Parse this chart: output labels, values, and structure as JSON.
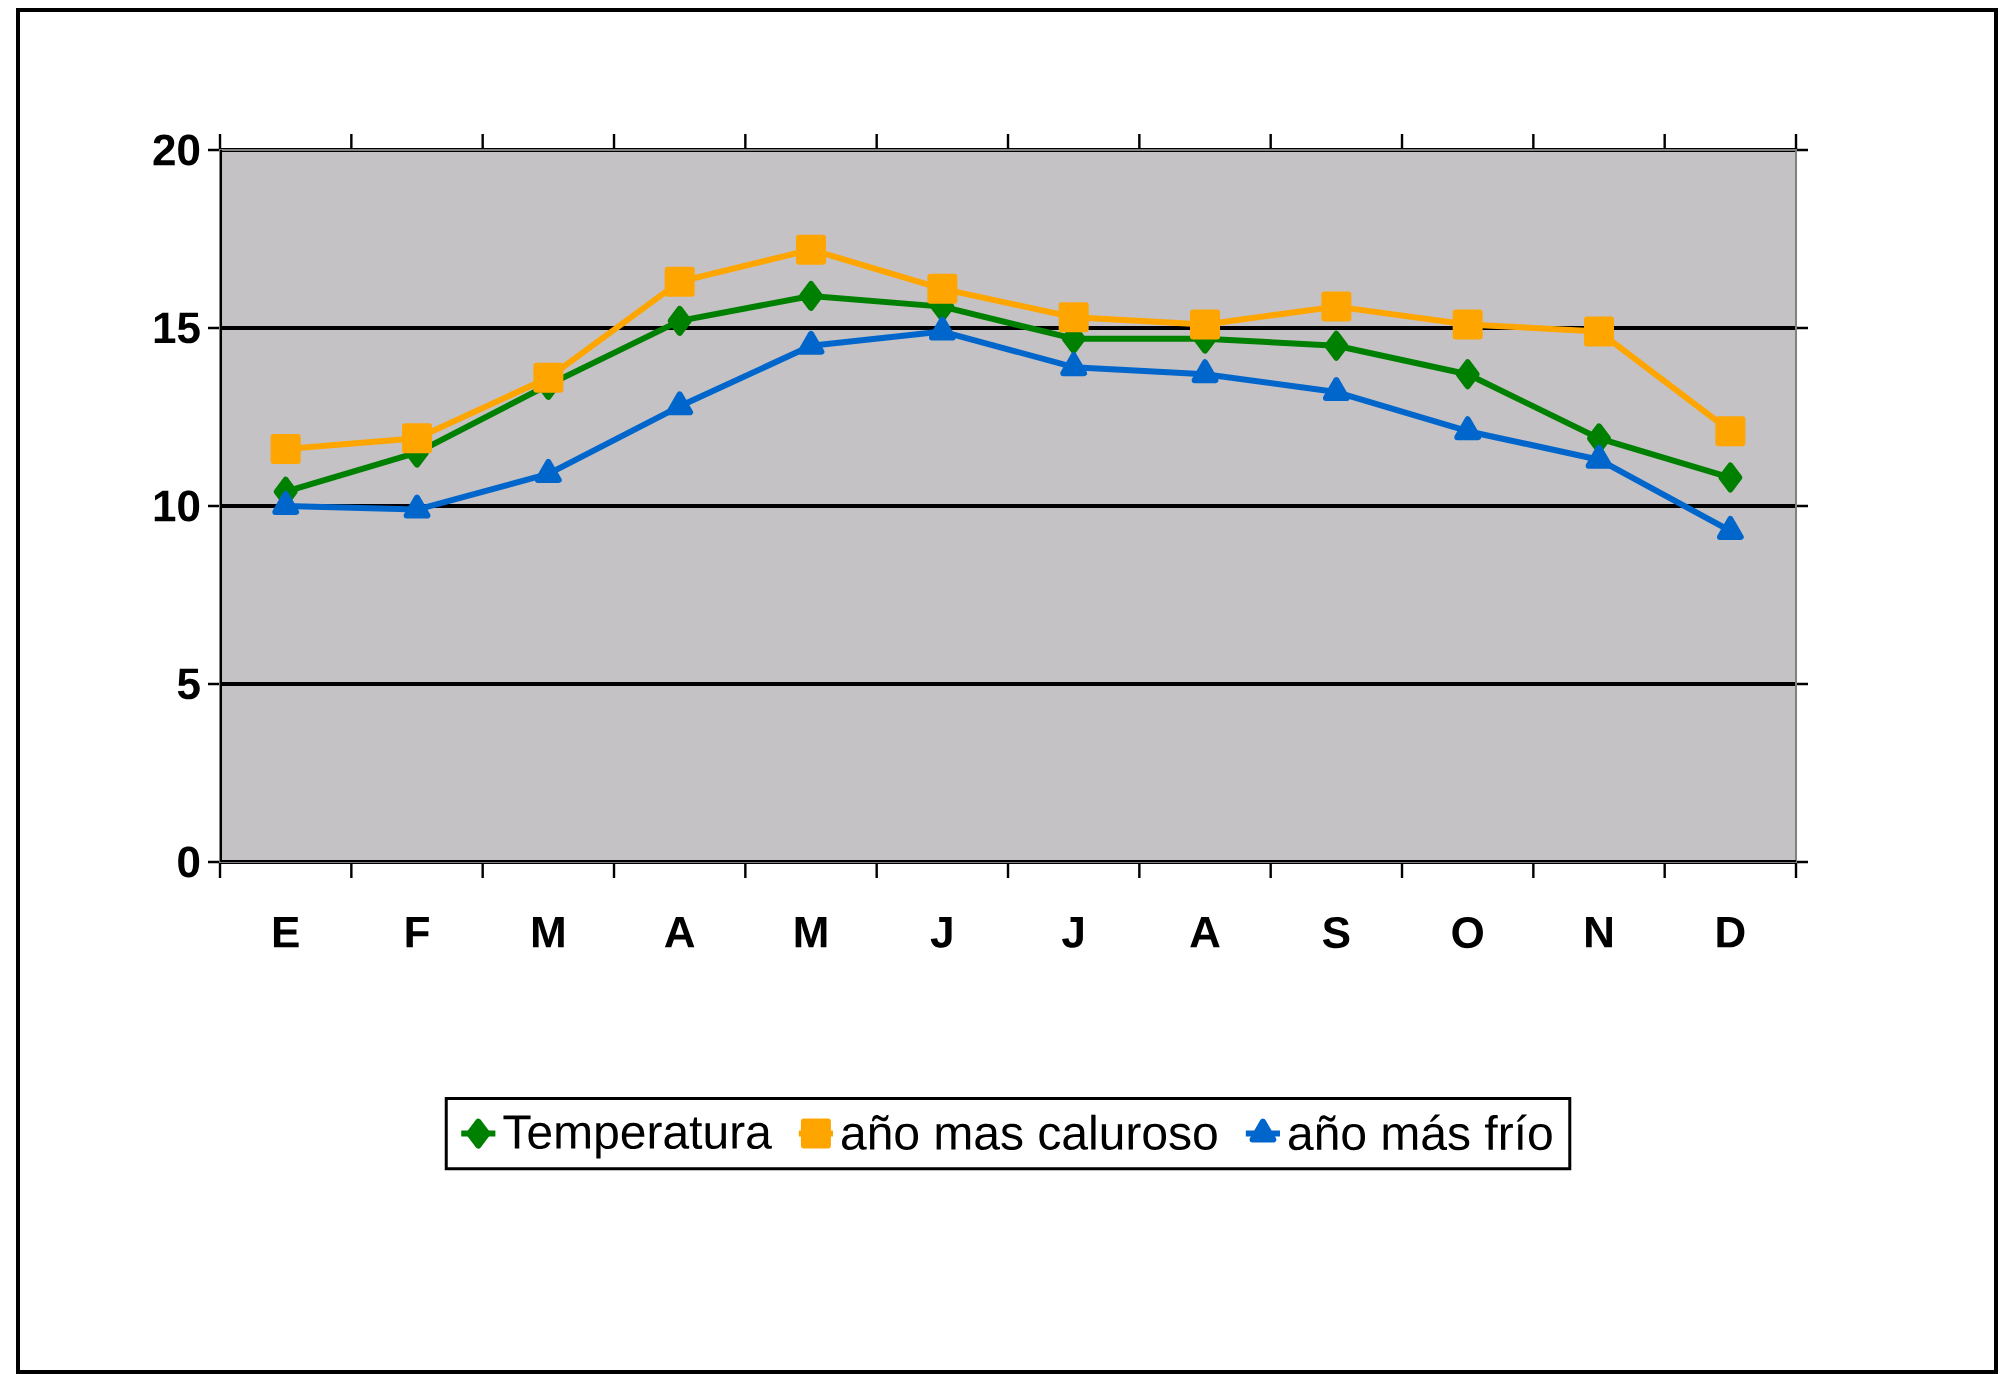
{
  "chart_data": {
    "type": "line",
    "categories": [
      "E",
      "F",
      "M",
      "A",
      "M",
      "J",
      "J",
      "A",
      "S",
      "O",
      "N",
      "D"
    ],
    "series": [
      {
        "name": "Temperatura",
        "color": "#008000",
        "marker": "diamond",
        "values": [
          10.4,
          11.5,
          13.4,
          15.2,
          15.9,
          15.6,
          14.7,
          14.7,
          14.5,
          13.7,
          11.9,
          10.8
        ]
      },
      {
        "name": "año mas caluroso",
        "color": "#ffa500",
        "marker": "square",
        "values": [
          11.6,
          11.9,
          13.6,
          16.3,
          17.2,
          16.1,
          15.3,
          15.1,
          15.6,
          15.1,
          14.9,
          12.1
        ]
      },
      {
        "name": "año más frío",
        "color": "#0066cc",
        "marker": "triangle",
        "values": [
          10.0,
          9.9,
          10.9,
          12.8,
          14.5,
          14.9,
          13.9,
          13.7,
          13.2,
          12.1,
          11.3,
          9.3
        ]
      }
    ],
    "ylim": [
      0,
      20
    ],
    "yticks": [
      0,
      5,
      10,
      15,
      20
    ],
    "grid": "y",
    "legend": "bottom",
    "line_style": "solid"
  }
}
